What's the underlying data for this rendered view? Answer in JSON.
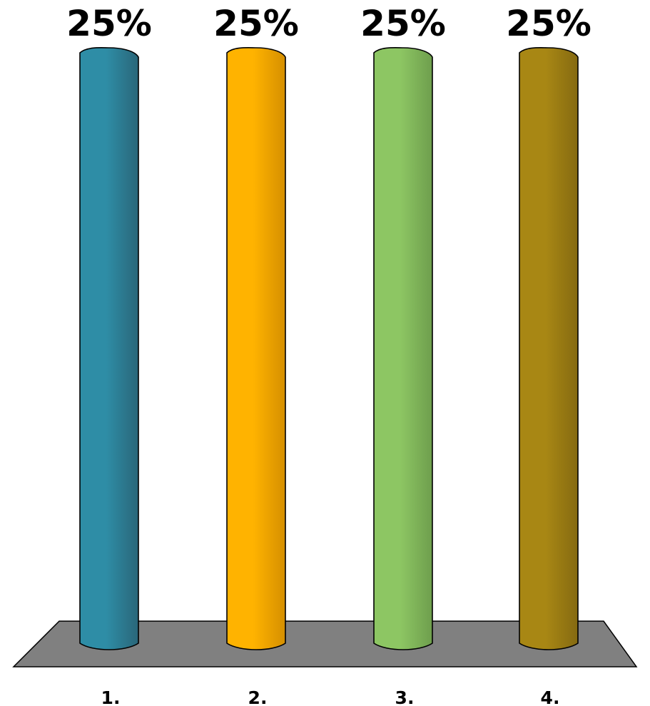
{
  "chart_data": {
    "type": "bar",
    "style": "3d-cylinder",
    "categories": [
      "1.",
      "2.",
      "3.",
      "4."
    ],
    "values": [
      25,
      25,
      25,
      25
    ],
    "data_labels": [
      "25%",
      "25%",
      "25%",
      "25%"
    ],
    "ylim": [
      0,
      25
    ],
    "grid": false,
    "legend": "none",
    "colors": {
      "bars": [
        "#2E8DA6",
        "#FFB300",
        "#8DC663",
        "#A88714"
      ],
      "bars_dark": [
        "#2A6679",
        "#D58F00",
        "#6E9E4D",
        "#856A11"
      ],
      "floor": "#808080",
      "outline": "#000000"
    }
  }
}
